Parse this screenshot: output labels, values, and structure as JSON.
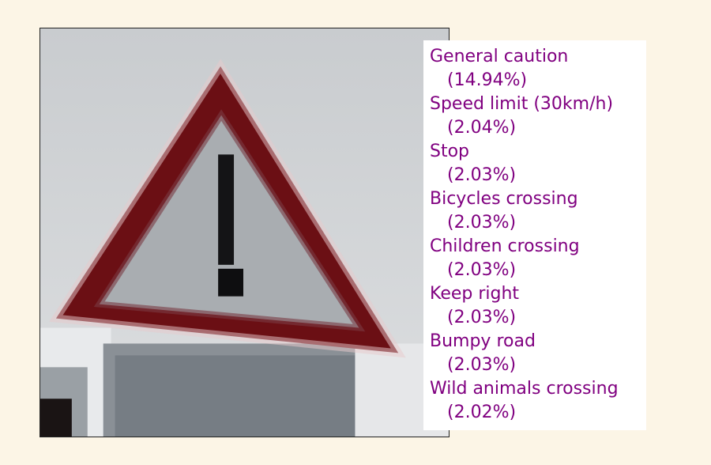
{
  "predictions": [
    {
      "label": "General caution",
      "probability": "(14.94%)"
    },
    {
      "label": "Speed limit (30km/h)",
      "probability": "(2.04%)"
    },
    {
      "label": "Stop",
      "probability": "(2.03%)"
    },
    {
      "label": "Bicycles crossing",
      "probability": "(2.03%)"
    },
    {
      "label": "Children crossing",
      "probability": "(2.03%)"
    },
    {
      "label": "Keep right",
      "probability": "(2.03%)"
    },
    {
      "label": "Bumpy road",
      "probability": "(2.03%)"
    },
    {
      "label": "Wild animals crossing",
      "probability": "(2.02%)"
    }
  ],
  "colors": {
    "background": "#fcf5e6",
    "text": "#800080",
    "sign_border": "#6b0f14"
  },
  "image": {
    "subject": "warning-triangle-sign-icon"
  }
}
